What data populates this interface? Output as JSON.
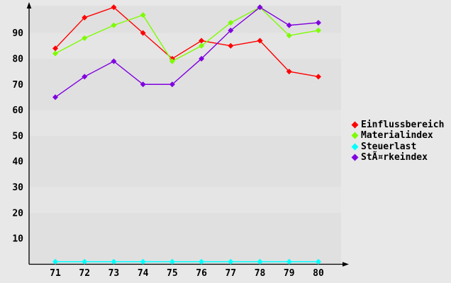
{
  "chart_data": {
    "type": "line",
    "title": "",
    "xlabel": "",
    "ylabel": "",
    "x": [
      71,
      72,
      73,
      74,
      75,
      76,
      77,
      78,
      79,
      80
    ],
    "xtick_labels": [
      "71",
      "72",
      "73",
      "74",
      "75",
      "76",
      "77",
      "78",
      "79",
      "80"
    ],
    "yticks": [
      10,
      20,
      30,
      40,
      50,
      60,
      70,
      80,
      90
    ],
    "ylim": [
      0,
      100
    ],
    "grid": false,
    "marker": "diamond",
    "legend_position": "right",
    "series": [
      {
        "name": "Einflussbereich",
        "color": "#ff0000",
        "values": [
          84,
          96,
          100,
          90,
          80,
          87,
          85,
          87,
          75,
          73
        ]
      },
      {
        "name": "Materialindex",
        "color": "#7cfc00",
        "values": [
          82,
          88,
          93,
          97,
          79,
          85,
          94,
          100,
          89,
          91
        ]
      },
      {
        "name": "Steuerlast",
        "color": "#00ffff",
        "values": [
          1,
          1,
          1,
          1,
          1,
          1,
          1,
          1,
          1,
          1
        ]
      },
      {
        "name": "StÃ¤rkeindex",
        "color": "#8000e0",
        "values": [
          65,
          73,
          79,
          70,
          70,
          80,
          91,
          100,
          93,
          94
        ]
      }
    ]
  },
  "colors": {
    "outer_background": "#e8e8e8",
    "band_dark": "#e0e0e0",
    "band_light": "#e5e5e5",
    "axis": "#000000",
    "label_text": "#000000"
  }
}
